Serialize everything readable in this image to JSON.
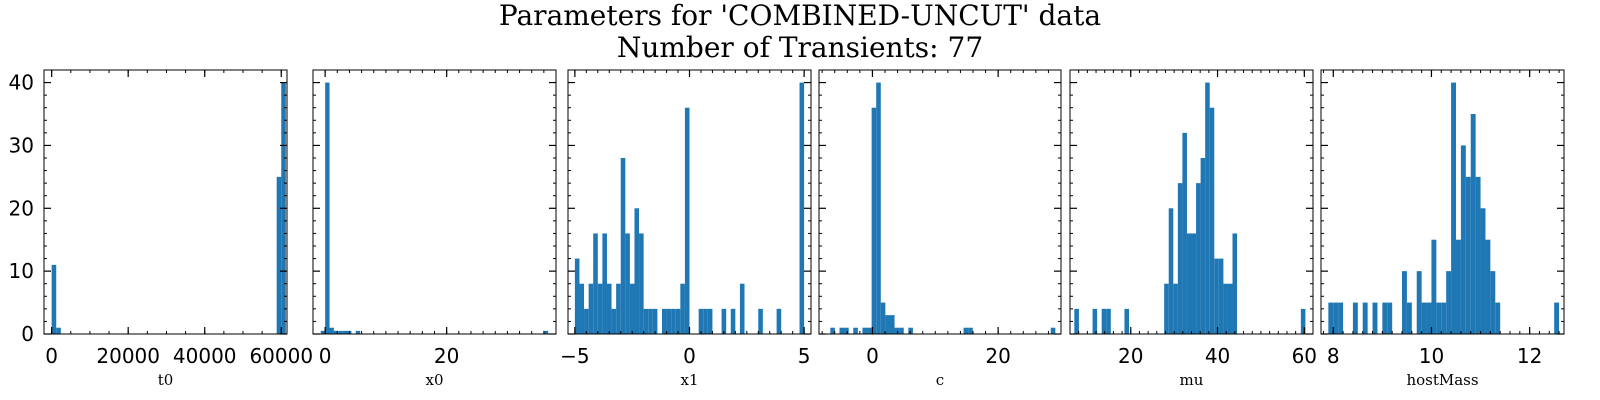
{
  "chart_data": [
    {
      "type": "bar",
      "title": "Parameters for 'COMBINED-UNCUT' data",
      "subtitle": "Number of Transients: 77",
      "xlabel": "t0",
      "xlim": [
        -2000,
        61500
      ],
      "ylim": [
        0,
        42
      ],
      "yticks": [
        0,
        10,
        20,
        30,
        40
      ],
      "xticks": [
        0,
        20000,
        40000,
        60000
      ],
      "bin_width": 1200,
      "bins": [
        [
          0,
          11
        ],
        [
          1200,
          1
        ],
        [
          58800,
          25
        ],
        [
          60000,
          40
        ]
      ]
    },
    {
      "type": "bar",
      "xlabel": "x0",
      "xlim": [
        -2,
        38
      ],
      "ylim": [
        0,
        42
      ],
      "xticks": [
        0,
        20
      ],
      "bin_width": 0.72,
      "bins": [
        [
          -0.72,
          0.5
        ],
        [
          0,
          40
        ],
        [
          0.72,
          1
        ],
        [
          1.44,
          0.5
        ],
        [
          2.16,
          0.5
        ],
        [
          2.88,
          0.5
        ],
        [
          3.6,
          0.5
        ],
        [
          5.04,
          0.5
        ],
        [
          36.0,
          0.5
        ]
      ]
    },
    {
      "type": "bar",
      "xlabel": "x1",
      "xlim": [
        -5.3,
        5.3
      ],
      "ylim": [
        0,
        42
      ],
      "xticks": [
        -5,
        0,
        5
      ],
      "bin_width": 0.2,
      "bins": [
        [
          -5.0,
          12
        ],
        [
          -4.8,
          8
        ],
        [
          -4.6,
          4
        ],
        [
          -4.4,
          8
        ],
        [
          -4.2,
          16
        ],
        [
          -4.0,
          8
        ],
        [
          -3.8,
          16
        ],
        [
          -3.6,
          8
        ],
        [
          -3.4,
          4
        ],
        [
          -3.2,
          8
        ],
        [
          -3.0,
          28
        ],
        [
          -2.8,
          16
        ],
        [
          -2.6,
          8
        ],
        [
          -2.4,
          20
        ],
        [
          -2.2,
          16
        ],
        [
          -2.0,
          4
        ],
        [
          -1.8,
          4
        ],
        [
          -1.6,
          4
        ],
        [
          -1.2,
          4
        ],
        [
          -1.0,
          4
        ],
        [
          -0.8,
          4
        ],
        [
          -0.6,
          4
        ],
        [
          -0.4,
          8
        ],
        [
          -0.2,
          36
        ],
        [
          0.4,
          4
        ],
        [
          0.6,
          4
        ],
        [
          0.8,
          4
        ],
        [
          1.4,
          4
        ],
        [
          1.8,
          4
        ],
        [
          2.2,
          8
        ],
        [
          3.0,
          4
        ],
        [
          3.8,
          4
        ],
        [
          4.8,
          40
        ]
      ]
    },
    {
      "type": "bar",
      "xlabel": "c",
      "xlim": [
        -8.5,
        30
      ],
      "ylim": [
        0,
        42
      ],
      "xticks": [
        0,
        20
      ],
      "bin_width": 0.73,
      "bins": [
        [
          -6.7,
          1
        ],
        [
          -5.24,
          1
        ],
        [
          -4.51,
          1
        ],
        [
          -3.05,
          1
        ],
        [
          -1.59,
          1
        ],
        [
          -0.86,
          1
        ],
        [
          -0.13,
          36
        ],
        [
          0.6,
          40
        ],
        [
          1.33,
          5
        ],
        [
          2.06,
          3
        ],
        [
          2.79,
          3
        ],
        [
          3.52,
          1
        ],
        [
          4.25,
          1
        ],
        [
          5.71,
          1
        ],
        [
          14.5,
          1
        ],
        [
          15.23,
          1
        ],
        [
          28.37,
          1
        ]
      ]
    },
    {
      "type": "bar",
      "xlabel": "mu",
      "xlim": [
        6,
        62
      ],
      "ylim": [
        0,
        42
      ],
      "xticks": [
        20,
        40,
        60
      ],
      "bin_width": 1.05,
      "bins": [
        [
          7.0,
          4
        ],
        [
          11.2,
          4
        ],
        [
          13.3,
          4
        ],
        [
          14.35,
          4
        ],
        [
          18.55,
          4
        ],
        [
          27.7,
          8
        ],
        [
          28.75,
          20
        ],
        [
          29.8,
          8
        ],
        [
          30.85,
          24
        ],
        [
          31.9,
          32
        ],
        [
          32.95,
          16
        ],
        [
          34.0,
          16
        ],
        [
          35.05,
          24
        ],
        [
          36.1,
          28
        ],
        [
          37.15,
          40
        ],
        [
          38.2,
          36
        ],
        [
          39.25,
          12
        ],
        [
          40.3,
          12
        ],
        [
          41.35,
          8
        ],
        [
          42.4,
          8
        ],
        [
          43.45,
          16
        ],
        [
          59.2,
          4
        ]
      ]
    },
    {
      "type": "bar",
      "xlabel": "hostMass",
      "xlim": [
        7.75,
        12.7
      ],
      "ylim": [
        0,
        42
      ],
      "xticks": [
        8,
        10,
        12
      ],
      "bin_width": 0.1,
      "bins": [
        [
          7.9,
          5
        ],
        [
          8.0,
          5
        ],
        [
          8.1,
          5
        ],
        [
          8.4,
          5
        ],
        [
          8.6,
          5
        ],
        [
          8.8,
          5
        ],
        [
          9.0,
          5
        ],
        [
          9.1,
          5
        ],
        [
          9.4,
          10
        ],
        [
          9.5,
          5
        ],
        [
          9.7,
          10
        ],
        [
          9.8,
          5
        ],
        [
          9.9,
          5
        ],
        [
          10.0,
          15
        ],
        [
          10.1,
          5
        ],
        [
          10.2,
          5
        ],
        [
          10.3,
          10
        ],
        [
          10.4,
          40
        ],
        [
          10.5,
          15
        ],
        [
          10.6,
          30
        ],
        [
          10.7,
          25
        ],
        [
          10.8,
          35
        ],
        [
          10.9,
          25
        ],
        [
          11.0,
          20
        ],
        [
          11.1,
          15
        ],
        [
          11.2,
          10
        ],
        [
          11.3,
          5
        ],
        [
          12.5,
          5
        ]
      ]
    }
  ]
}
